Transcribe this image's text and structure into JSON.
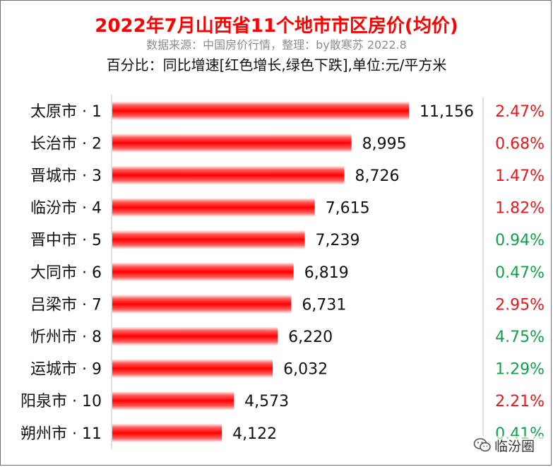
{
  "header": {
    "title": "2022年7月山西省11个地市市区房价(均价)",
    "subtitle": "数据来源：中国房价行情，整理：by散寒苏 2022.8",
    "note": "百分比：同比增速[红色增长,绿色下跌],单位:元/平方米"
  },
  "watermark": {
    "text": "临汾圈",
    "icon": "wechat-icon"
  },
  "colors": {
    "bar": "#ff0000",
    "up": "#e8171b",
    "down": "#13a04a"
  },
  "chart_data": {
    "type": "bar",
    "orientation": "horizontal",
    "categories": [
      "太原市 · 1",
      "长治市 · 2",
      "晋城市 · 3",
      "临汾市 · 4",
      "晋中市 · 5",
      "大同市 · 6",
      "吕梁市 · 7",
      "忻州市 · 8",
      "运城市 · 9",
      "阳泉市 · 10",
      "朔州市 · 11"
    ],
    "values": [
      11156,
      8995,
      8726,
      7615,
      7239,
      6819,
      6731,
      6220,
      6032,
      4573,
      4122
    ],
    "value_labels": [
      "11,156",
      "8,995",
      "8,726",
      "7,615",
      "7,239",
      "6,819",
      "6,731",
      "6,220",
      "6,032",
      "4,573",
      "4,122"
    ],
    "growth_labels": [
      "2.47%",
      "0.68%",
      "1.47%",
      "1.82%",
      "0.94%",
      "0.47%",
      "2.95%",
      "4.75%",
      "1.29%",
      "2.21%",
      "0.41%"
    ],
    "growth_direction": [
      "up",
      "up",
      "up",
      "up",
      "down",
      "down",
      "up",
      "down",
      "down",
      "up",
      "down"
    ],
    "xlim": [
      0,
      11156
    ]
  }
}
